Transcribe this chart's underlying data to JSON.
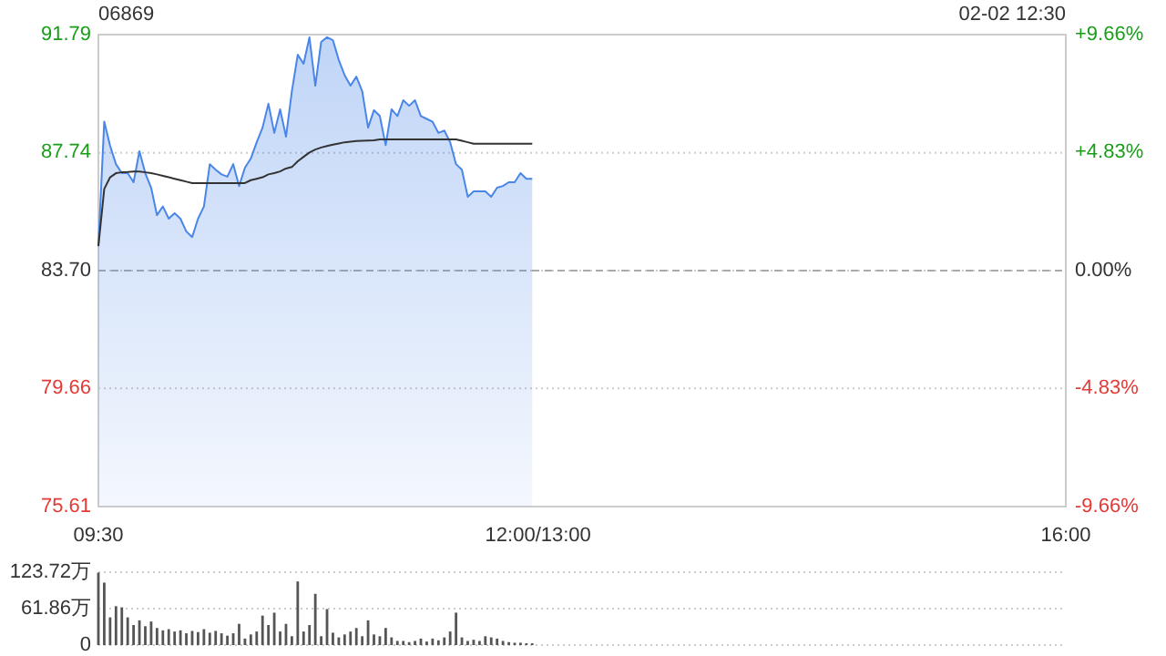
{
  "chart_data": [
    {
      "type": "area",
      "title": "06869",
      "annotations": [
        "02-02 12:30"
      ],
      "categories": [
        "09:30",
        null,
        null,
        null,
        null,
        null,
        null,
        null,
        null,
        null,
        null,
        null,
        null,
        null,
        null,
        null,
        null,
        null,
        null,
        null,
        null,
        null,
        null,
        null,
        null,
        null,
        null,
        null,
        null,
        null,
        null,
        null,
        null,
        null,
        null,
        null,
        null,
        null,
        null,
        null,
        null,
        null,
        null,
        null,
        null,
        null,
        null,
        null,
        null,
        null,
        null,
        null,
        null,
        null,
        null,
        null,
        null,
        null,
        null,
        null,
        null,
        null,
        null,
        null,
        null,
        null,
        null,
        null,
        null,
        null,
        null,
        null,
        null,
        null,
        null,
        "12:00/13:00",
        null,
        null,
        null,
        null,
        null,
        null,
        null,
        null,
        null,
        null,
        null,
        null,
        null,
        null,
        null,
        null,
        null,
        null,
        null,
        null,
        null,
        null,
        null,
        null,
        null,
        null,
        null,
        null,
        null,
        null,
        null,
        null,
        null,
        null,
        null,
        null,
        null,
        null,
        null,
        null,
        null,
        null,
        null,
        null,
        null,
        null,
        null,
        null,
        null,
        null,
        null,
        null,
        null,
        null,
        null,
        null,
        null,
        null,
        null,
        null,
        null,
        null,
        null,
        null,
        null,
        null,
        null,
        null,
        null,
        null,
        null,
        null,
        null,
        null,
        null,
        null,
        null,
        null,
        null,
        null,
        null,
        null,
        null,
        null,
        null,
        null,
        null,
        null,
        null,
        "16:00"
      ],
      "ylim": [
        75.61,
        91.79
      ],
      "yticks": [
        75.61,
        79.66,
        {
          "value": 83.7,
          "label": "83.70"
        },
        87.74,
        91.79
      ],
      "y2lim": [
        -9.66,
        9.66
      ],
      "y2ticks": [
        {
          "value": -9.66,
          "label": "-9.66%"
        },
        {
          "value": -4.83,
          "label": "-4.83%"
        },
        {
          "value": 0,
          "label": "0.00%"
        },
        {
          "value": 4.83,
          "label": "+4.83%"
        },
        {
          "value": 9.66,
          "label": "+9.66%"
        }
      ],
      "grid": "y",
      "ref_lines": [
        {
          "axis": "y",
          "value": 83.7,
          "color": "#aaaaaa",
          "line_style": "dashed"
        }
      ],
      "series": [
        {
          "type": "area",
          "color": "#4a86e8",
          "values": [
            84.54,
            88.81,
            87.98,
            87.35,
            87.04,
            87.04,
            86.73,
            87.79,
            87.04,
            86.54,
            85.6,
            85.9,
            85.48,
            85.67,
            85.48,
            85.04,
            84.85,
            85.48,
            85.9,
            87.35,
            87.16,
            87.0,
            86.92,
            87.35,
            86.6,
            87.23,
            87.54,
            88.1,
            88.6,
            89.42,
            88.42,
            89.23,
            88.29,
            89.85,
            91.1,
            90.79,
            91.7,
            90.04,
            91.54,
            91.7,
            91.6,
            90.92,
            90.4,
            90.04,
            90.35,
            89.85,
            88.6,
            89.2,
            89.0,
            88.0,
            89.23,
            89.0,
            89.54,
            89.35,
            89.54,
            89.0,
            88.9,
            88.8,
            88.42,
            88.5,
            88.1,
            87.35,
            87.16,
            86.23,
            86.42,
            86.42,
            86.42,
            86.23,
            86.54,
            86.6,
            86.73,
            86.73,
            87.04,
            86.85,
            86.85,
            null,
            null,
            null,
            null,
            null,
            null,
            null,
            null,
            null,
            null,
            null,
            null,
            null,
            null,
            null,
            null,
            null,
            null,
            null,
            null,
            null,
            null,
            null,
            null,
            null,
            null,
            null,
            null,
            null,
            null,
            null,
            null,
            null,
            null,
            null,
            null,
            null,
            null,
            null,
            null,
            null,
            null,
            null,
            null,
            null,
            null,
            null,
            null,
            null,
            null,
            null,
            null,
            null,
            null,
            null,
            null,
            null,
            null,
            null,
            null,
            null,
            null,
            null,
            null,
            null,
            null,
            null,
            null,
            null,
            null,
            null,
            null,
            null,
            null,
            null,
            null,
            null,
            null,
            null,
            null,
            null,
            null,
            null,
            null,
            null,
            null,
            null,
            null,
            null,
            null,
            null
          ]
        },
        {
          "type": "line",
          "color": "#333333",
          "values": [
            84.54,
            86.5,
            86.9,
            87.04,
            87.07,
            87.08,
            87.1,
            87.1,
            87.07,
            87.04,
            87.0,
            86.95,
            86.9,
            86.85,
            86.8,
            86.75,
            86.7,
            86.7,
            86.7,
            86.7,
            86.7,
            86.7,
            86.7,
            86.7,
            86.7,
            86.7,
            86.8,
            86.85,
            86.9,
            87.0,
            87.04,
            87.1,
            87.2,
            87.25,
            87.45,
            87.6,
            87.75,
            87.85,
            87.92,
            87.97,
            88.02,
            88.06,
            88.1,
            88.12,
            88.14,
            88.15,
            88.16,
            88.17,
            88.2,
            88.2,
            88.2,
            88.2,
            88.2,
            88.2,
            88.2,
            88.2,
            88.2,
            88.2,
            88.2,
            88.2,
            88.2,
            88.2,
            88.15,
            88.1,
            88.05,
            88.05,
            88.05,
            88.05,
            88.05,
            88.05,
            88.05,
            88.05,
            88.05,
            88.05,
            88.05,
            null,
            null,
            null,
            null,
            null,
            null,
            null,
            null,
            null,
            null,
            null,
            null,
            null,
            null,
            null,
            null,
            null,
            null,
            null,
            null,
            null,
            null,
            null,
            null,
            null,
            null,
            null,
            null,
            null,
            null,
            null,
            null,
            null,
            null,
            null,
            null,
            null,
            null,
            null,
            null,
            null,
            null,
            null,
            null,
            null,
            null,
            null,
            null,
            null,
            null,
            null,
            null,
            null,
            null,
            null,
            null,
            null,
            null,
            null,
            null,
            null,
            null,
            null,
            null,
            null,
            null,
            null,
            null,
            null,
            null,
            null,
            null,
            null,
            null,
            null,
            null,
            null,
            null,
            null,
            null,
            null,
            null,
            null,
            null,
            null,
            null,
            null,
            null,
            null,
            null,
            null
          ]
        }
      ]
    },
    {
      "type": "bar",
      "ylim": [
        0,
        123.72
      ],
      "yticks": [
        0,
        {
          "value": 61.86,
          "label": "61.86万"
        },
        {
          "value": 123.72,
          "label": "123.72万"
        }
      ],
      "tick_labels": "y",
      "grid": "y",
      "categories": [
        null,
        null,
        null,
        null,
        null,
        null,
        null,
        null,
        null,
        null,
        null,
        null,
        null,
        null,
        null,
        null,
        null,
        null,
        null,
        null,
        null,
        null,
        null,
        null,
        null,
        null,
        null,
        null,
        null,
        null,
        null,
        null,
        null,
        null,
        null,
        null,
        null,
        null,
        null,
        null,
        null,
        null,
        null,
        null,
        null,
        null,
        null,
        null,
        null,
        null,
        null,
        null,
        null,
        null,
        null,
        null,
        null,
        null,
        null,
        null,
        null,
        null,
        null,
        null,
        null,
        null,
        null,
        null,
        null,
        null,
        null,
        null,
        null,
        null,
        null,
        null,
        null,
        null,
        null,
        null,
        null,
        null,
        null,
        null,
        null,
        null,
        null,
        null,
        null,
        null,
        null,
        null,
        null,
        null,
        null,
        null,
        null,
        null,
        null,
        null,
        null,
        null,
        null,
        null,
        null,
        null,
        null,
        null,
        null,
        null,
        null,
        null,
        null,
        null,
        null,
        null,
        null,
        null,
        null,
        null,
        null,
        null,
        null,
        null,
        null,
        null,
        null,
        null,
        null,
        null,
        null,
        null,
        null,
        null,
        null,
        null,
        null,
        null,
        null,
        null,
        null,
        null,
        null,
        null,
        null,
        null,
        null,
        null,
        null,
        null,
        null,
        null,
        null,
        null,
        null,
        null,
        null,
        null,
        null,
        null,
        null,
        null,
        null,
        null,
        null,
        null
      ],
      "series": [
        {
          "color": "#555555",
          "values": [
            123,
            106,
            47,
            66,
            64,
            47,
            34,
            42,
            32,
            40,
            29,
            25,
            27,
            23,
            25,
            20,
            24,
            22,
            27,
            21,
            24,
            20,
            16,
            20,
            36,
            11,
            18,
            23,
            50,
            34,
            55,
            23,
            36,
            15,
            108,
            23,
            34,
            87,
            15,
            61,
            21,
            13,
            18,
            23,
            29,
            15,
            42,
            18,
            15,
            29,
            13,
            7,
            7,
            5,
            7,
            11,
            6,
            11,
            8,
            13,
            23,
            55,
            13,
            7,
            9,
            7,
            15,
            13,
            11,
            7,
            5,
            4,
            4,
            3,
            3,
            null,
            null,
            null,
            null,
            null,
            null,
            null,
            null,
            null,
            null,
            null,
            null,
            null,
            null,
            null,
            null,
            null,
            null,
            null,
            null,
            null,
            null,
            null,
            null,
            null,
            null,
            null,
            null,
            null,
            null,
            null,
            null,
            null,
            null,
            null,
            null,
            null,
            null,
            null,
            null,
            null,
            null,
            null,
            null,
            null,
            null,
            null,
            null,
            null,
            null,
            null,
            null,
            null,
            null,
            null,
            null,
            null,
            null,
            null,
            null,
            null,
            null,
            null,
            null,
            null,
            null,
            null,
            null,
            null,
            null,
            null,
            null,
            null,
            null,
            null,
            null,
            null,
            null,
            null,
            null,
            null,
            null,
            null,
            null,
            null,
            null,
            null,
            null,
            null,
            null,
            null
          ]
        }
      ]
    }
  ]
}
